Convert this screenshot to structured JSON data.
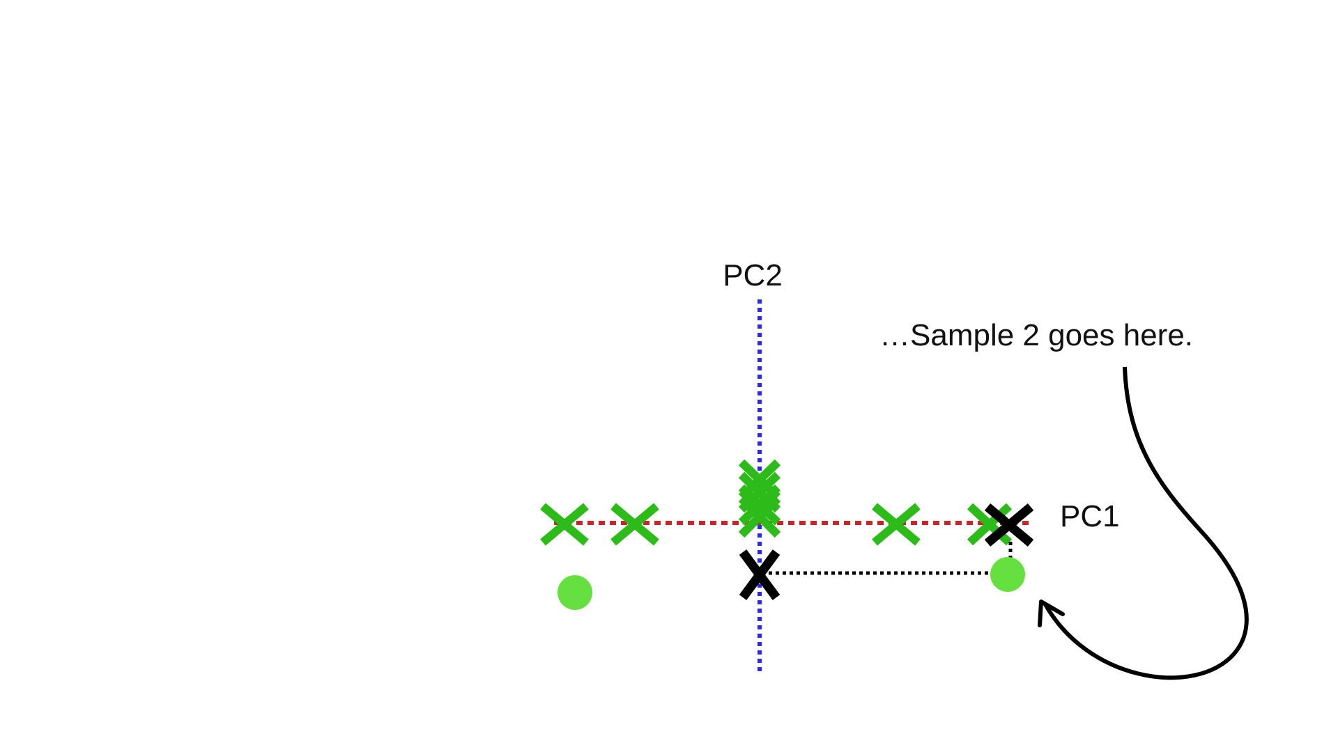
{
  "labels": {
    "pc2": "PC2",
    "pc1": "PC1",
    "annotation": "…Sample 2 goes here."
  },
  "colors": {
    "background": "#ffffff",
    "pc1_axis": "#d0202a",
    "pc2_axis": "#2a2ae8",
    "green_marker": "#2dbb19",
    "green_dot": "#66e040",
    "black_marker": "#000000",
    "projection_line": "#000000",
    "arrow": "#000000"
  },
  "icons": {
    "green_x": "x-mark",
    "sample_point": "filled-circle",
    "projected_point": "x-mark"
  }
}
